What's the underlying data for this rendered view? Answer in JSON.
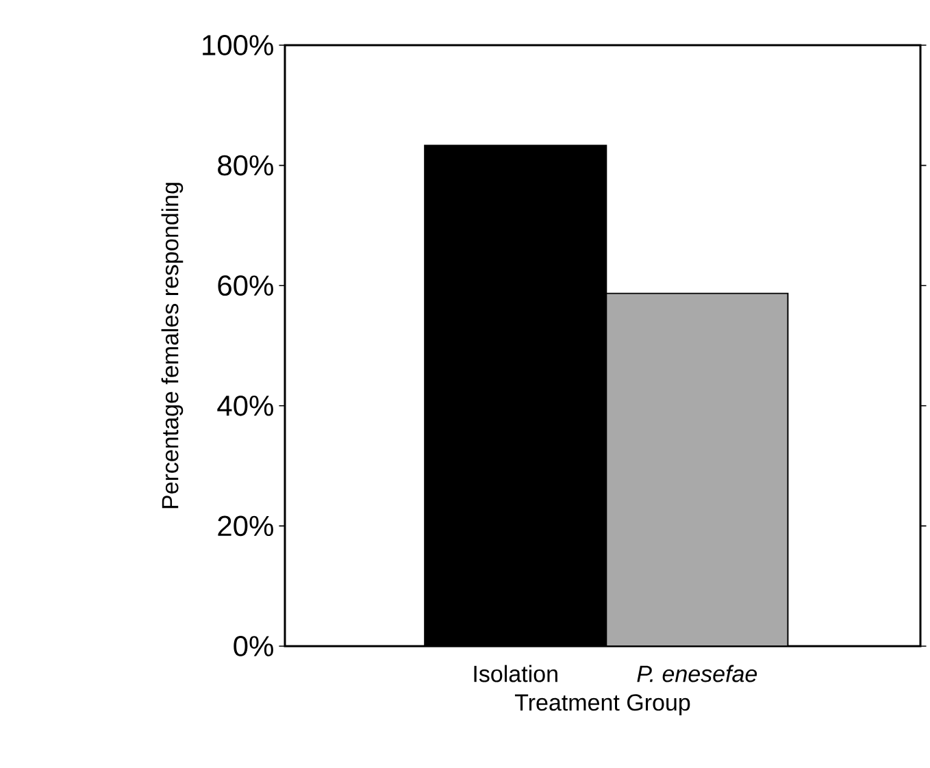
{
  "chart_data": {
    "type": "bar",
    "xlabel": "Treatment Group",
    "ylabel": "Percentage females responding",
    "categories": [
      "Isolation",
      "*P. enesefae*"
    ],
    "values": [
      83.3,
      58.7
    ],
    "colors": [
      "#000000",
      "#a9a9a9"
    ],
    "ylim": [
      0,
      100
    ],
    "yticks": [
      {
        "value": 0,
        "label": "0%"
      },
      {
        "value": 20,
        "label": "20%"
      },
      {
        "value": 40,
        "label": "40%"
      },
      {
        "value": 60,
        "label": "60%"
      },
      {
        "value": 80,
        "label": "80%"
      },
      {
        "value": 100,
        "label": "100%"
      }
    ],
    "grid": false
  }
}
